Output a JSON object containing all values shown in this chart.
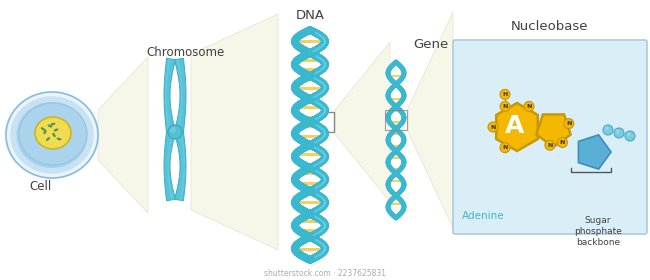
{
  "labels": {
    "cell": "Cell",
    "chromosome": "Chromosome",
    "dna": "DNA",
    "gene": "Gene",
    "nucleobase": "Nucleobase",
    "adenine": "Adenine",
    "sugar_phosphate": "Sugar\nphosphate\nbackbone",
    "adenine_letter": "A"
  },
  "colors": {
    "background": "#ffffff",
    "cell_outer": "#b8dff0",
    "cell_cytoplasm": "#a8d8ee",
    "cell_nucleus": "#f5e060",
    "chromosome_color": "#4ec0d8",
    "chromosome_edge": "#3aaabb",
    "dna_strand": "#3ab8d0",
    "dna_rung": "#f0d060",
    "nucleobase_bg": "#daeef8",
    "nucleobase_border": "#aaccdd",
    "adenine_color": "#f5b800",
    "sugar_color": "#5bafd6",
    "zoom_bg": "#f8f8e0",
    "label_color": "#404040",
    "adenine_label": "#40b8c8",
    "watermark_color": "#aaaaaa"
  },
  "watermark": "shutterstock.com · 2237625831"
}
